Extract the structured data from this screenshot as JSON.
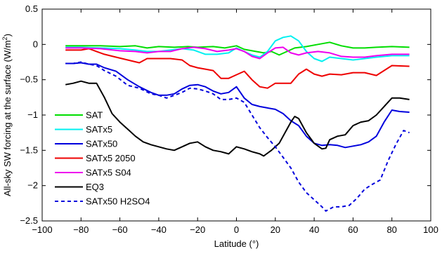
{
  "chart_data": {
    "type": "line",
    "xlabel": "Latitude (°)",
    "ylabel_main": "All-sky SW forcing at the surface (W/m",
    "ylabel_sup": "2",
    "ylabel_tail": ")",
    "xlim": [
      -100,
      100
    ],
    "ylim": [
      -2.5,
      0.5
    ],
    "xticks": [
      -100,
      -80,
      -60,
      -40,
      -20,
      0,
      20,
      40,
      60,
      80,
      100
    ],
    "xtick_labels": [
      "−100",
      "−80",
      "−60",
      "−40",
      "−20",
      "0",
      "20",
      "40",
      "60",
      "80",
      "100"
    ],
    "yticks": [
      0.5,
      0,
      -0.5,
      -1,
      -1.5,
      -2,
      -2.5
    ],
    "ytick_labels": [
      "0.5",
      "0",
      "−0.5",
      "−1",
      "−1.5",
      "−2",
      "−2.5"
    ],
    "legend_position": "lower-left",
    "series": [
      {
        "name": "SAT",
        "color": "#00dd00",
        "dash": "solid",
        "x": [
          -88,
          -80,
          -70,
          -60,
          -52,
          -46,
          -40,
          -32,
          -25,
          -20,
          -12,
          -6,
          0,
          4,
          10,
          14,
          18,
          22,
          26,
          30,
          36,
          42,
          48,
          54,
          60,
          66,
          72,
          80,
          89
        ],
        "y": [
          -0.02,
          -0.02,
          -0.02,
          -0.03,
          -0.02,
          -0.05,
          -0.03,
          -0.04,
          -0.03,
          -0.04,
          -0.03,
          -0.05,
          -0.02,
          -0.07,
          -0.1,
          -0.12,
          -0.1,
          -0.15,
          -0.1,
          -0.05,
          -0.03,
          0.0,
          0.03,
          -0.02,
          -0.05,
          -0.05,
          -0.04,
          -0.03,
          -0.04
        ]
      },
      {
        "name": "SATx5",
        "color": "#00f0f0",
        "dash": "solid",
        "x": [
          -88,
          -80,
          -70,
          -60,
          -52,
          -46,
          -40,
          -34,
          -28,
          -22,
          -16,
          -10,
          -4,
          0,
          4,
          8,
          12,
          16,
          20,
          24,
          28,
          32,
          36,
          40,
          44,
          48,
          54,
          60,
          66,
          72,
          80,
          89
        ],
        "y": [
          -0.04,
          -0.04,
          -0.05,
          -0.06,
          -0.08,
          -0.1,
          -0.1,
          -0.08,
          -0.06,
          -0.08,
          -0.14,
          -0.14,
          -0.12,
          -0.05,
          -0.1,
          -0.15,
          -0.18,
          -0.1,
          0.05,
          0.1,
          0.12,
          0.05,
          -0.1,
          -0.2,
          -0.24,
          -0.18,
          -0.2,
          -0.22,
          -0.2,
          -0.18,
          -0.16,
          -0.16
        ]
      },
      {
        "name": "SATx50",
        "color": "#0000dd",
        "dash": "solid",
        "x": [
          -88,
          -84,
          -80,
          -76,
          -72,
          -68,
          -62,
          -56,
          -50,
          -44,
          -40,
          -36,
          -32,
          -28,
          -24,
          -20,
          -16,
          -12,
          -8,
          -4,
          0,
          4,
          8,
          12,
          16,
          20,
          24,
          28,
          32,
          36,
          40,
          44,
          48,
          52,
          56,
          60,
          64,
          68,
          72,
          76,
          80,
          84,
          89
        ],
        "y": [
          -0.27,
          -0.27,
          -0.26,
          -0.28,
          -0.28,
          -0.33,
          -0.38,
          -0.5,
          -0.6,
          -0.68,
          -0.72,
          -0.72,
          -0.7,
          -0.63,
          -0.58,
          -0.57,
          -0.6,
          -0.66,
          -0.7,
          -0.68,
          -0.6,
          -0.76,
          -0.85,
          -0.88,
          -0.9,
          -0.92,
          -0.98,
          -1.08,
          -1.15,
          -1.3,
          -1.4,
          -1.43,
          -1.42,
          -1.43,
          -1.46,
          -1.44,
          -1.42,
          -1.38,
          -1.3,
          -1.1,
          -0.93,
          -0.95,
          -0.96
        ]
      },
      {
        "name": "SATx5 2050",
        "color": "#ee0000",
        "dash": "solid",
        "x": [
          -88,
          -80,
          -76,
          -72,
          -68,
          -62,
          -56,
          -50,
          -46,
          -40,
          -34,
          -28,
          -24,
          -20,
          -16,
          -12,
          -8,
          -4,
          0,
          4,
          8,
          12,
          16,
          20,
          24,
          28,
          32,
          36,
          40,
          44,
          48,
          54,
          60,
          66,
          72,
          80,
          89
        ],
        "y": [
          -0.08,
          -0.08,
          -0.06,
          -0.1,
          -0.14,
          -0.18,
          -0.22,
          -0.26,
          -0.2,
          -0.2,
          -0.2,
          -0.22,
          -0.3,
          -0.33,
          -0.35,
          -0.37,
          -0.48,
          -0.48,
          -0.43,
          -0.38,
          -0.5,
          -0.6,
          -0.62,
          -0.55,
          -0.55,
          -0.55,
          -0.42,
          -0.35,
          -0.42,
          -0.45,
          -0.42,
          -0.43,
          -0.4,
          -0.4,
          -0.44,
          -0.3,
          -0.31
        ]
      },
      {
        "name": "SATx5 S04",
        "color": "#ee00ee",
        "dash": "solid",
        "x": [
          -88,
          -80,
          -70,
          -60,
          -52,
          -46,
          -40,
          -34,
          -28,
          -22,
          -16,
          -10,
          -4,
          0,
          4,
          8,
          12,
          16,
          20,
          24,
          28,
          32,
          36,
          42,
          48,
          54,
          60,
          66,
          72,
          80,
          89
        ],
        "y": [
          -0.05,
          -0.05,
          -0.06,
          -0.09,
          -0.1,
          -0.12,
          -0.1,
          -0.1,
          -0.06,
          -0.04,
          -0.06,
          -0.1,
          -0.08,
          -0.06,
          -0.1,
          -0.17,
          -0.2,
          -0.12,
          -0.05,
          -0.04,
          -0.12,
          -0.15,
          -0.12,
          -0.1,
          -0.12,
          -0.17,
          -0.18,
          -0.18,
          -0.16,
          -0.14,
          -0.14
        ]
      },
      {
        "name": "EQ3",
        "color": "#000000",
        "dash": "solid",
        "x": [
          -88,
          -84,
          -80,
          -76,
          -72,
          -68,
          -64,
          -60,
          -56,
          -52,
          -48,
          -44,
          -40,
          -36,
          -32,
          -28,
          -24,
          -20,
          -16,
          -12,
          -8,
          -4,
          0,
          4,
          8,
          12,
          14,
          18,
          22,
          26,
          28,
          30,
          32,
          36,
          40,
          44,
          46,
          48,
          52,
          56,
          60,
          64,
          68,
          72,
          76,
          80,
          84,
          89
        ],
        "y": [
          -0.57,
          -0.55,
          -0.52,
          -0.55,
          -0.55,
          -0.75,
          -0.98,
          -1.1,
          -1.2,
          -1.3,
          -1.38,
          -1.42,
          -1.45,
          -1.48,
          -1.5,
          -1.45,
          -1.4,
          -1.38,
          -1.45,
          -1.5,
          -1.52,
          -1.55,
          -1.45,
          -1.48,
          -1.52,
          -1.55,
          -1.58,
          -1.5,
          -1.4,
          -1.2,
          -1.1,
          -1.02,
          -1.05,
          -1.25,
          -1.4,
          -1.48,
          -1.47,
          -1.35,
          -1.3,
          -1.28,
          -1.15,
          -1.1,
          -1.08,
          -1.0,
          -0.88,
          -0.76,
          -0.76,
          -0.78
        ]
      },
      {
        "name": "SATx50 H2SO4",
        "color": "#0000dd",
        "dash": "dashed",
        "x": [
          -88,
          -84,
          -80,
          -76,
          -72,
          -68,
          -62,
          -56,
          -50,
          -44,
          -40,
          -36,
          -32,
          -28,
          -24,
          -20,
          -16,
          -12,
          -8,
          -4,
          0,
          4,
          8,
          12,
          16,
          20,
          24,
          28,
          32,
          36,
          40,
          44,
          46,
          50,
          54,
          58,
          62,
          66,
          70,
          74,
          78,
          82,
          86,
          89
        ],
        "y": [
          -0.27,
          -0.27,
          -0.25,
          -0.28,
          -0.3,
          -0.37,
          -0.45,
          -0.58,
          -0.62,
          -0.7,
          -0.72,
          -0.76,
          -0.72,
          -0.68,
          -0.62,
          -0.63,
          -0.66,
          -0.7,
          -0.78,
          -0.78,
          -0.76,
          -0.82,
          -1.0,
          -1.18,
          -1.32,
          -1.45,
          -1.6,
          -1.75,
          -1.95,
          -2.1,
          -2.2,
          -2.3,
          -2.36,
          -2.3,
          -2.3,
          -2.28,
          -2.18,
          -2.05,
          -1.98,
          -1.92,
          -1.65,
          -1.42,
          -1.22,
          -1.25
        ]
      }
    ]
  }
}
